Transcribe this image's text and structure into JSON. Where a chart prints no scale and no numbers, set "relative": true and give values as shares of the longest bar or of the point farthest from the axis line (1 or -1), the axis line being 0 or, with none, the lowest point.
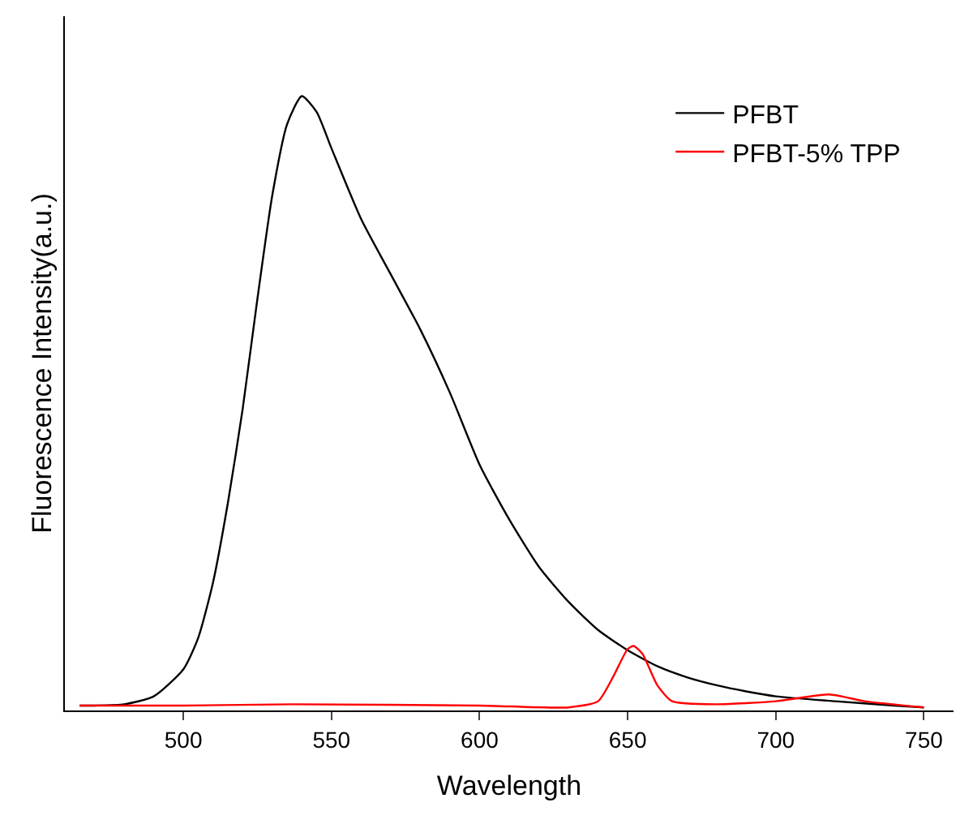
{
  "chart_data": {
    "type": "line",
    "xlabel": "Wavelength",
    "ylabel": "Fluorescence Intensity(a.u.)",
    "relative": true,
    "xlim": [
      460,
      760
    ],
    "xticks": [
      500,
      550,
      600,
      650,
      700,
      750
    ],
    "legend": "top right",
    "marker": "none",
    "line_style": "solid",
    "series": [
      {
        "name": "PFBT",
        "color": "#000000",
        "x": [
          465,
          470,
          480,
          490,
          500,
          505,
          510,
          515,
          520,
          525,
          530,
          535,
          540,
          545,
          550,
          560,
          570,
          580,
          590,
          600,
          610,
          620,
          630,
          640,
          650,
          660,
          670,
          680,
          690,
          700,
          720,
          740,
          750
        ],
        "values": [
          0.008,
          0.008,
          0.01,
          0.023,
          0.067,
          0.118,
          0.208,
          0.337,
          0.49,
          0.67,
          0.838,
          0.954,
          1.0,
          0.974,
          0.915,
          0.8,
          0.71,
          0.62,
          0.517,
          0.4,
          0.311,
          0.234,
          0.177,
          0.131,
          0.098,
          0.072,
          0.054,
          0.041,
          0.031,
          0.023,
          0.015,
          0.008,
          0.005
        ]
      },
      {
        "name": "PFBT-5% TPP",
        "color": "#ff0000",
        "x": [
          465,
          500,
          537,
          600,
          630,
          640,
          645,
          650,
          652,
          655,
          660,
          665,
          680,
          700,
          718,
          730,
          750
        ],
        "values": [
          0.008,
          0.008,
          0.01,
          0.008,
          0.005,
          0.015,
          0.054,
          0.1,
          0.105,
          0.092,
          0.041,
          0.015,
          0.01,
          0.015,
          0.026,
          0.015,
          0.005
        ]
      }
    ]
  }
}
